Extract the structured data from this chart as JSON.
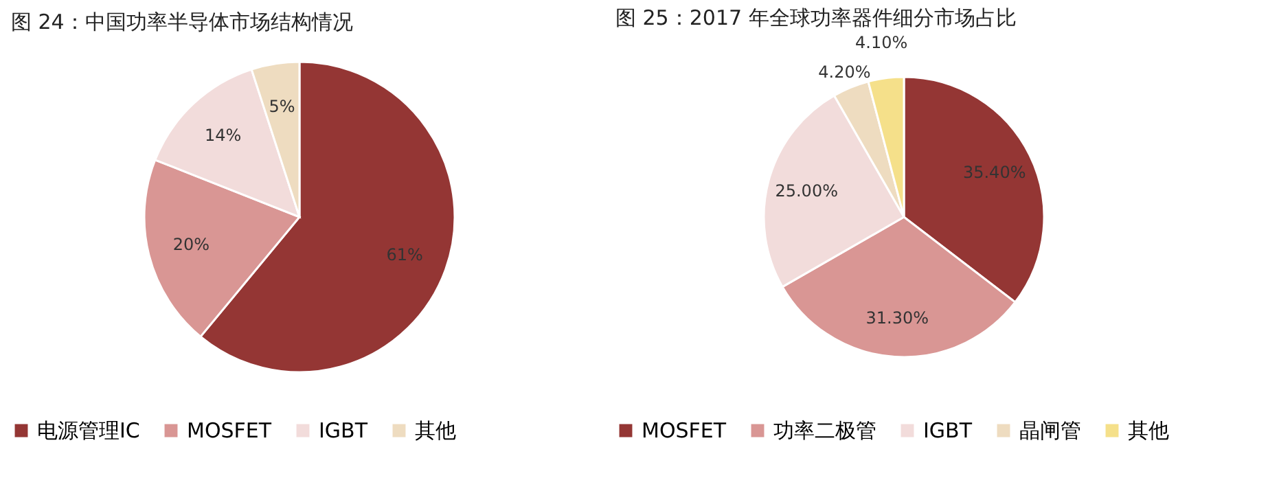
{
  "chart_data": [
    {
      "type": "pie",
      "title": "图 24：中国功率半导体市场结构情况",
      "categories": [
        "电源管理IC",
        "MOSFET",
        "IGBT",
        "其他"
      ],
      "values": [
        61,
        20,
        14,
        5
      ],
      "colors": [
        "#943634",
        "#d99694",
        "#f2dcdb",
        "#eedcc0"
      ],
      "value_labels": [
        "61%",
        "20%",
        "14%",
        "5%"
      ],
      "legend": "bottom"
    },
    {
      "type": "pie",
      "title": "图 25：2017 年全球功率器件细分市场占比",
      "categories": [
        "MOSFET",
        "功率二极管",
        "IGBT",
        "晶闸管",
        "其他"
      ],
      "values": [
        35.4,
        31.3,
        25.0,
        4.2,
        4.1
      ],
      "colors": [
        "#943634",
        "#d99694",
        "#f2dcdb",
        "#eedcc0",
        "#f5e08a"
      ],
      "value_labels": [
        "35.40%",
        "31.30%",
        "25.00%",
        "4.20%",
        "4.10%"
      ],
      "legend": "bottom"
    }
  ]
}
